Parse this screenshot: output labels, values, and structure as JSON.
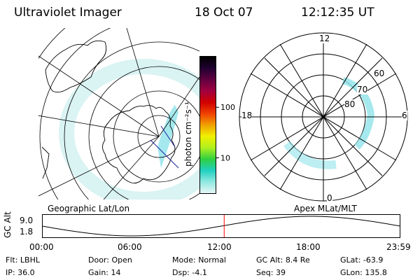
{
  "header": {
    "instrument": "Ultraviolet Imager",
    "date": "18 Oct 07",
    "time": "12:12:35 UT"
  },
  "geo_panel": {
    "label": "Geographic Lat/Lon",
    "colors": {
      "aurora": "#cfeff0",
      "aurora_strong": "#8fe3ea",
      "coast": "#000000"
    }
  },
  "colorbar": {
    "unit_label": "photon cm⁻²s⁻¹",
    "ticks": [
      {
        "value": 100,
        "label": "100"
      },
      {
        "value": 10,
        "label": "10"
      }
    ],
    "scale": "log",
    "range": [
      2,
      1000
    ],
    "stops": [
      "#e6f6f6",
      "#90e8e0",
      "#20d0c0",
      "#30d040",
      "#b0f020",
      "#f0f000",
      "#f0a000",
      "#f04000",
      "#d00000",
      "#a00040",
      "#600040",
      "#200030",
      "#000000"
    ]
  },
  "apex_panel": {
    "label": "Apex MLat/MLT",
    "mlt_labels": [
      "12",
      "18",
      "6",
      "0"
    ],
    "lat_labels": [
      "60",
      "70",
      "80"
    ]
  },
  "timeline": {
    "axis_label": "GC Alt",
    "y_ticks": [
      "9.0",
      "1.8"
    ],
    "x_ticks": [
      "00:00",
      "06:00",
      "12:00",
      "18:00",
      "23:59"
    ],
    "current_hour": 12.2,
    "marker_color": "#ff0000"
  },
  "footer": {
    "rows": [
      [
        {
          "key": "Flt:",
          "val": "LBHL"
        },
        {
          "key": "Door:",
          "val": "Open"
        },
        {
          "key": "Mode:",
          "val": "Normal"
        },
        {
          "key": "GC Alt:",
          "val": "8.4 Re"
        },
        {
          "key": "GLat:",
          "val": "-63.9"
        }
      ],
      [
        {
          "key": "IP:",
          "val": "36.0"
        },
        {
          "key": "Gain:",
          "val": "14"
        },
        {
          "key": "Dsp:",
          "val": "-4.1"
        },
        {
          "key": "Seq:",
          "val": "39"
        },
        {
          "key": "GLon:",
          "val": "135.8"
        }
      ]
    ]
  }
}
